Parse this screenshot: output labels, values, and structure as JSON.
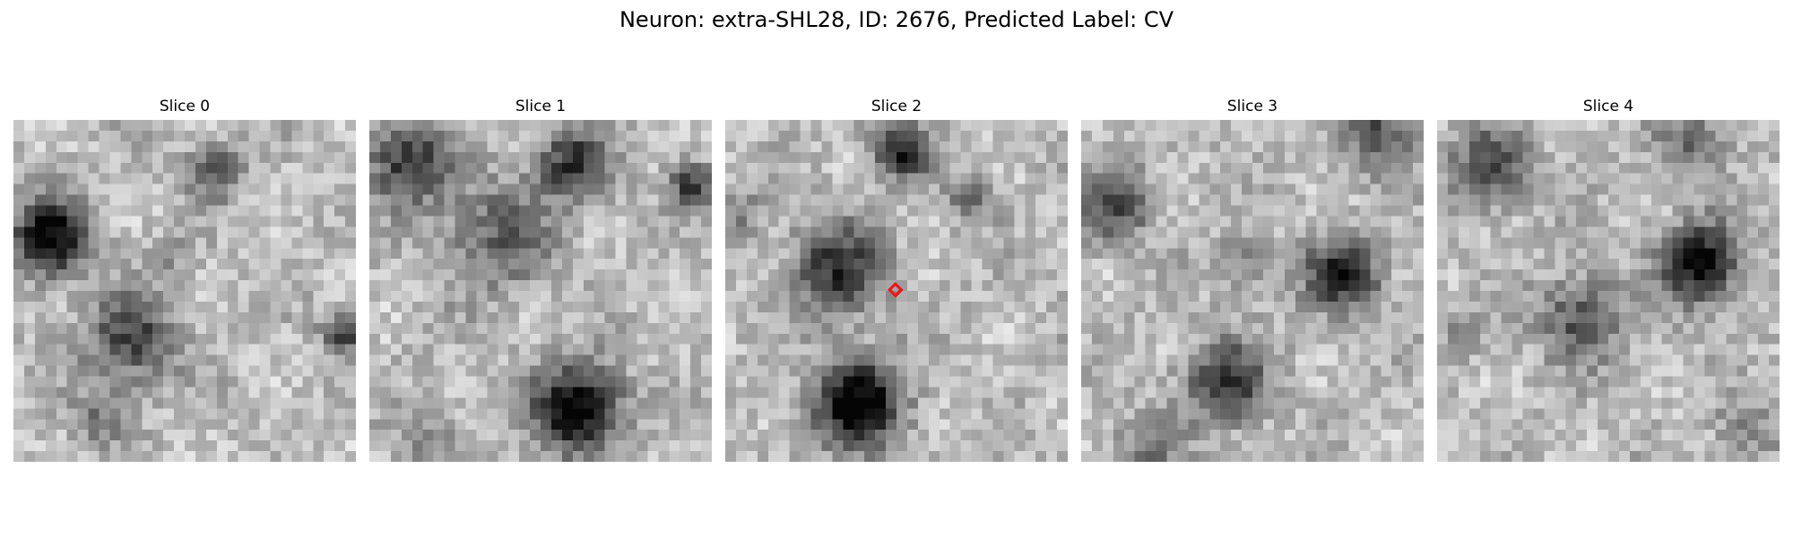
{
  "figure": {
    "title": "Neuron: extra-SHL28, ID: 2676, Predicted Label: CV"
  },
  "panels": [
    {
      "title": "Slice 0"
    },
    {
      "title": "Slice 1"
    },
    {
      "title": "Slice 2",
      "marker": {
        "shape": "diamond",
        "color": "#e8191e"
      }
    },
    {
      "title": "Slice 3"
    },
    {
      "title": "Slice 4"
    }
  ],
  "colormap": "gray"
}
